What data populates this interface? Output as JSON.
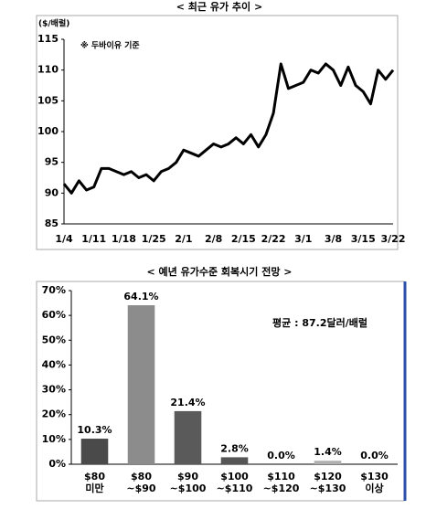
{
  "chart_data": [
    {
      "type": "line",
      "title": "< 최근 유가 추이 >",
      "y_unit": "($/배럴)",
      "note": "※ 두바이유 기준",
      "categories": [
        "1/4",
        null,
        null,
        null,
        "1/11",
        null,
        null,
        null,
        "1/18",
        null,
        null,
        null,
        "1/25",
        null,
        null,
        null,
        "2/1",
        null,
        null,
        null,
        "2/8",
        null,
        null,
        null,
        "2/15",
        null,
        null,
        null,
        "2/22",
        null,
        null,
        null,
        "3/1",
        null,
        null,
        null,
        "3/8",
        null,
        null,
        null,
        "3/15",
        null,
        null,
        null,
        "3/22"
      ],
      "values": [
        91.5,
        90,
        92,
        90.5,
        91,
        94,
        94,
        93.5,
        93,
        93.5,
        92.5,
        93,
        92,
        93.5,
        94,
        95,
        97,
        96.5,
        96,
        97,
        98,
        97.5,
        98,
        99,
        98,
        99.5,
        97.5,
        99.5,
        103,
        111,
        107,
        107.5,
        108,
        110,
        109.5,
        111,
        110,
        107.5,
        110.5,
        107.5,
        106.5,
        104.5,
        110,
        108.5,
        110
      ],
      "color": "#000000",
      "ylim": [
        85,
        115
      ],
      "yticks": [
        85,
        90,
        95,
        100,
        105,
        110,
        115
      ]
    },
    {
      "type": "bar",
      "title": "< 예년 유가수준 회복시기 전망 >",
      "annotation": "평균 : 87.2달러/배럴",
      "categories": [
        [
          "$80",
          "미만"
        ],
        [
          "$80",
          "~$90"
        ],
        [
          "$90",
          "~$100"
        ],
        [
          "$100",
          "~$110"
        ],
        [
          "$110",
          "~$120"
        ],
        [
          "$120",
          "~$130"
        ],
        [
          "$130",
          "이상"
        ]
      ],
      "values": [
        10.3,
        64.1,
        21.4,
        2.8,
        0,
        1.4,
        0
      ],
      "value_labels": [
        "10.3%",
        "64.1%",
        "21.4%",
        "2.8%",
        "0.0%",
        "1.4%",
        "0.0%"
      ],
      "colors": [
        "#4a4a4a",
        "#8c8c8c",
        "#5a5a5a",
        "#555555",
        "#555555",
        "#b0b0b0",
        "#555555"
      ],
      "ylim": [
        0,
        70
      ],
      "yticks": [
        {
          "value": 0,
          "label": "0%"
        },
        {
          "value": 10,
          "label": "10%"
        },
        {
          "value": 20,
          "label": "20%"
        },
        {
          "value": 30,
          "label": "30%"
        },
        {
          "value": 40,
          "label": "40%"
        },
        {
          "value": 50,
          "label": "50%"
        },
        {
          "value": 60,
          "label": "60%"
        },
        {
          "value": 70,
          "label": "70%"
        }
      ]
    }
  ]
}
